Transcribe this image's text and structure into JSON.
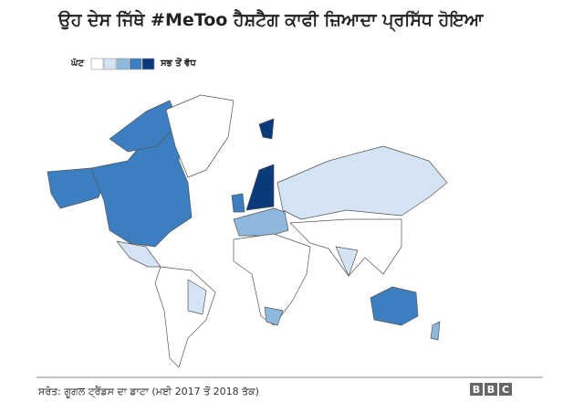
{
  "header": {
    "title": "ਉਹ ਦੇਸ ਜਿੱਥੇ #MeToo ਹੈਸ਼ਟੈਗ ਕਾਫੀ ਜ਼ਿਆਦਾ ਪ੍ਰਸਿੱਧ ਹੋਇਆ"
  },
  "legend": {
    "low": "ਘੱਟ",
    "high": "ਸਭ ਤੋਂ ਵੱਧ",
    "colors": [
      "#ffffff",
      "#d4e4f4",
      "#8fb8dd",
      "#3c7fc0",
      "#0b3a7c"
    ]
  },
  "footer": {
    "source": "ਸਰੋਤ: ਗੂਗਲ ਟ੍ਰੈਂਡਸ ਦਾ ਡਾਟਾ (ਮਈ 2017 ਤੋਂ 2018 ਤੱਕ)",
    "logo": [
      "B",
      "B",
      "C"
    ]
  }
}
